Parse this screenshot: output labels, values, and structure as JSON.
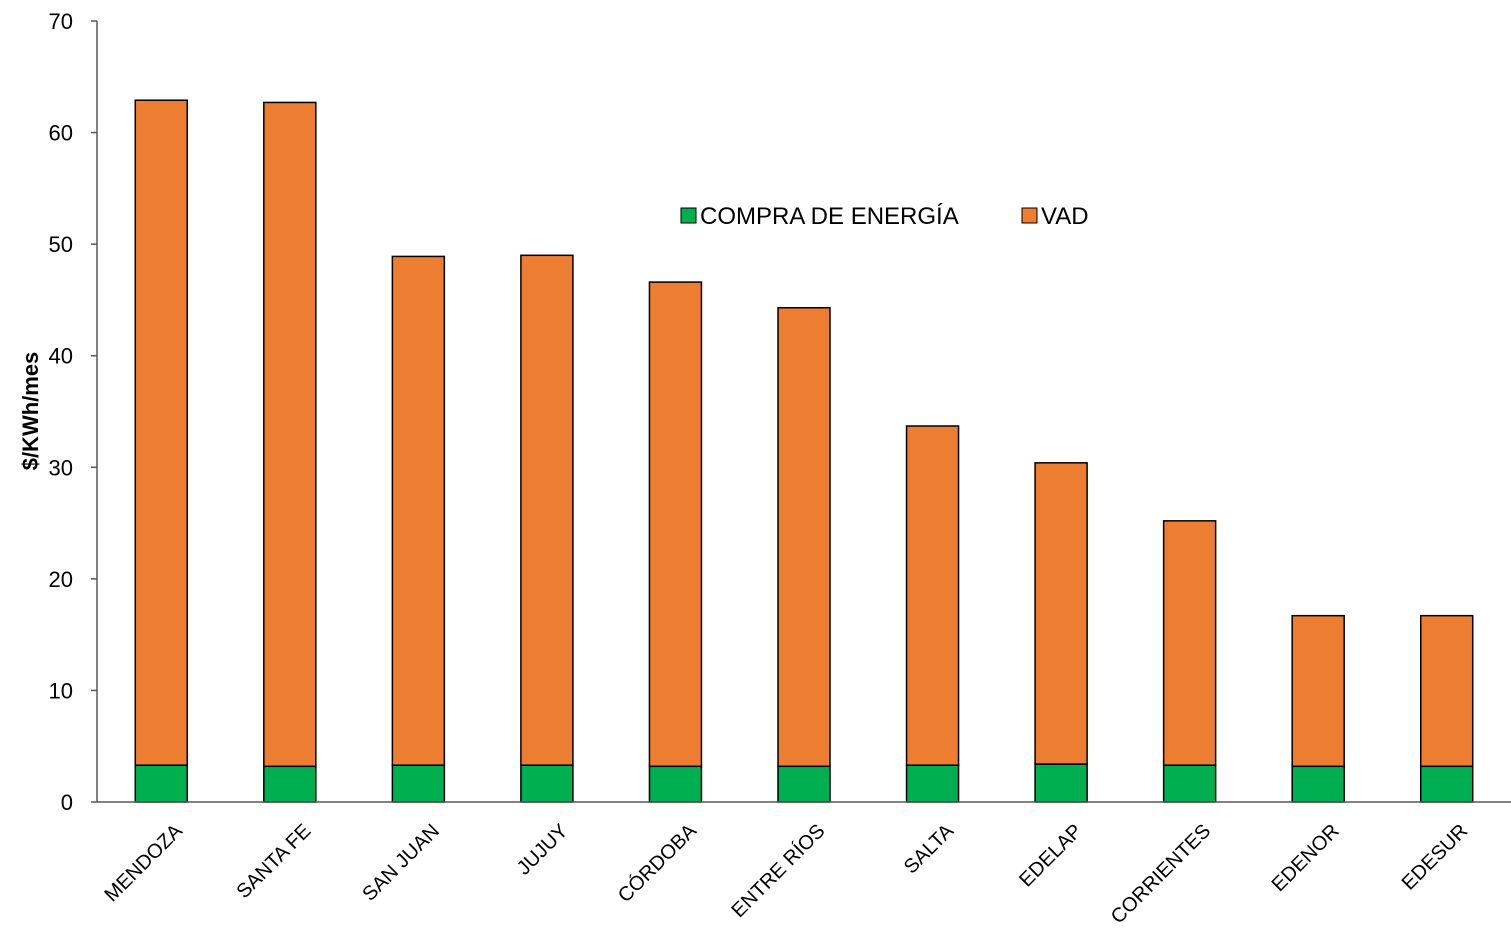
{
  "chart_data": {
    "type": "bar",
    "stacked": true,
    "categories": [
      "MENDOZA",
      "SANTA FE",
      "SAN JUAN",
      "JUJUY",
      "CÓRDOBA",
      "ENTRE RÍOS",
      "SALTA",
      "EDELAP",
      "CORRIENTES",
      "EDENOR",
      "EDESUR"
    ],
    "series": [
      {
        "name": "COMPRA DE ENERGÍA",
        "color": "#00b050",
        "values": [
          3.3,
          3.2,
          3.3,
          3.3,
          3.2,
          3.2,
          3.3,
          3.4,
          3.3,
          3.2,
          3.2
        ]
      },
      {
        "name": "VAD",
        "color": "#ed7d31",
        "values": [
          59.6,
          59.5,
          45.6,
          45.7,
          43.4,
          41.1,
          30.4,
          27.0,
          21.9,
          13.5,
          13.5
        ]
      }
    ],
    "title": "",
    "xlabel": "",
    "ylabel": "$/KWh/mes",
    "ylim": [
      0,
      70
    ],
    "yticks": [
      0,
      10,
      20,
      30,
      40,
      50,
      60,
      70
    ],
    "grid": false,
    "legend": "top-center"
  }
}
